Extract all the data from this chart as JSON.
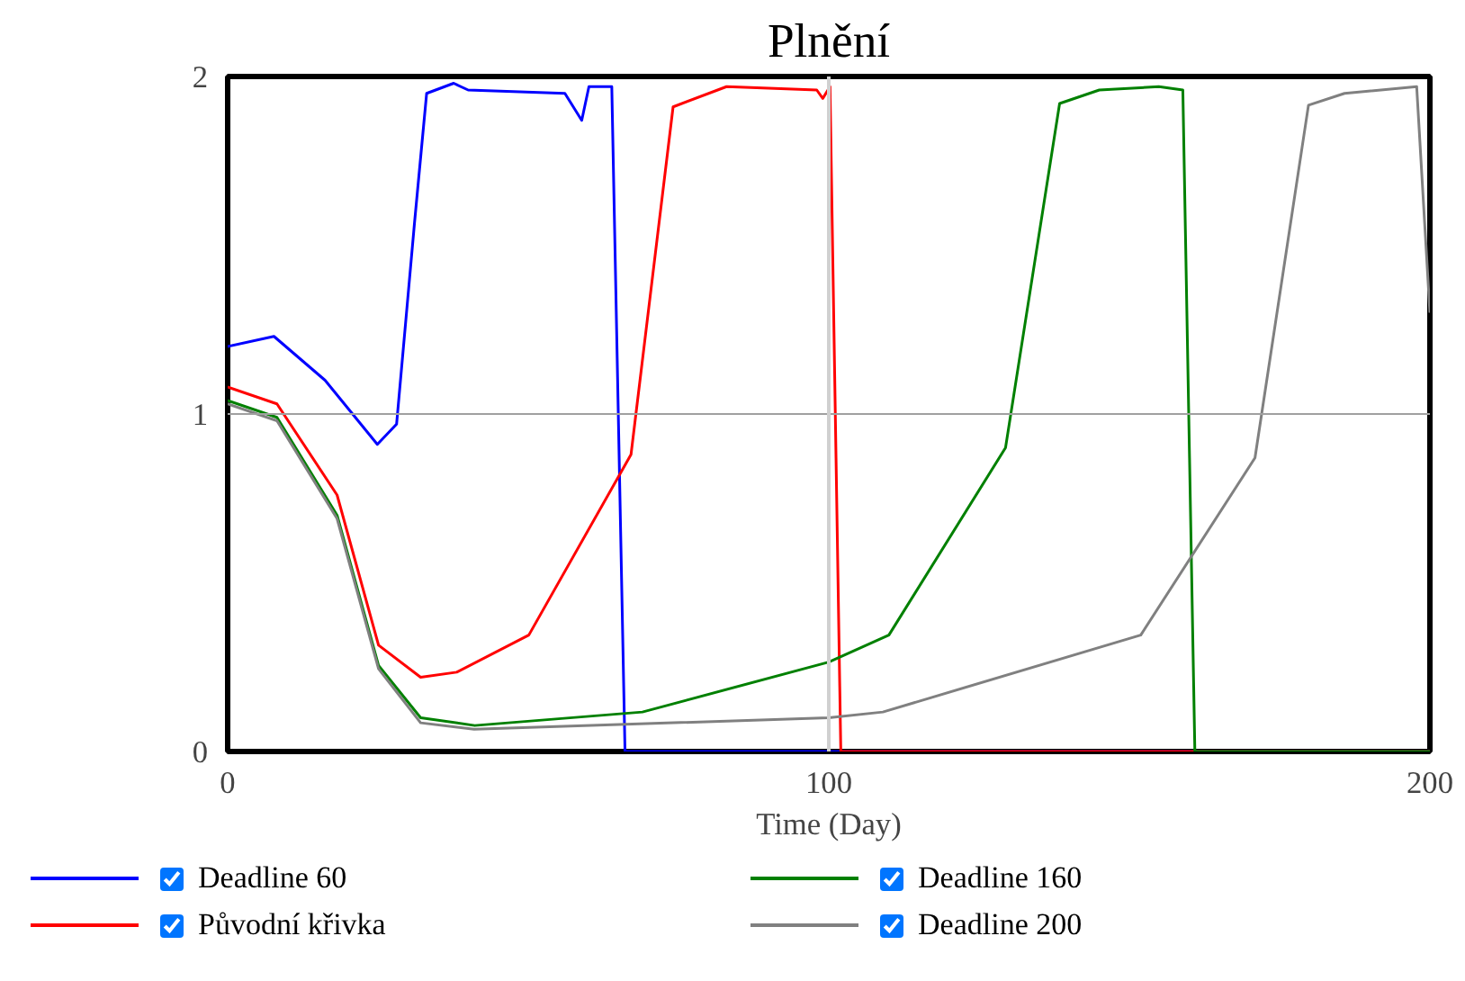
{
  "chart_data": {
    "type": "line",
    "title": "Plnění",
    "xlabel": "Time (Day)",
    "xlim": [
      0,
      200
    ],
    "xticks": [
      0,
      100,
      200
    ],
    "ylim": [
      0,
      2
    ],
    "yticks": [
      0,
      1,
      2
    ],
    "ref_lines": [
      {
        "axis": "y",
        "value": 1,
        "color": "#a0a0a0"
      },
      {
        "axis": "x",
        "value": 100,
        "color": "#d0d0d0"
      }
    ],
    "legend": "bottom",
    "line_style": "solid",
    "series": [
      {
        "name": "Deadline 60",
        "color": "#0000ff",
        "x": [
          0,
          7.7,
          16.2,
          24.9,
          28.1,
          31.1,
          33.1,
          37.6,
          40,
          56.1,
          58.9,
          60.1,
          63.9,
          66.1,
          200
        ],
        "values": [
          1.2,
          1.23,
          1.1,
          0.91,
          0.97,
          1.57,
          1.95,
          1.98,
          1.96,
          1.95,
          1.87,
          1.97,
          1.97,
          0,
          0
        ]
      },
      {
        "name": "Původní křivka",
        "color": "#ff0000",
        "x": [
          0,
          8.2,
          18.2,
          25.1,
          32.1,
          38.1,
          50.1,
          67.1,
          74.1,
          83,
          98,
          99,
          100.2,
          102,
          200
        ],
        "values": [
          1.08,
          1.03,
          0.76,
          0.315,
          0.22,
          0.235,
          0.345,
          0.88,
          1.91,
          1.97,
          1.96,
          1.935,
          1.97,
          0,
          0
        ]
      },
      {
        "name": "Deadline 160",
        "color": "#008000",
        "x": [
          0,
          8.2,
          18.2,
          25.1,
          32.1,
          41.1,
          69,
          100,
          110,
          129.4,
          138.4,
          145,
          154.9,
          158.9,
          160.9,
          200
        ],
        "values": [
          1.04,
          0.99,
          0.7,
          0.255,
          0.1,
          0.077,
          0.117,
          0.265,
          0.345,
          0.9,
          1.92,
          1.96,
          1.97,
          1.96,
          0,
          0
        ]
      },
      {
        "name": "Deadline 200",
        "color": "#808080",
        "x": [
          0,
          8.2,
          18.2,
          25.1,
          32.1,
          41,
          100,
          109,
          151.9,
          170.9,
          179.8,
          185.8,
          197.8,
          200
        ],
        "values": [
          1.03,
          0.98,
          0.69,
          0.245,
          0.085,
          0.066,
          0.1,
          0.117,
          0.345,
          0.87,
          1.915,
          1.95,
          1.97,
          1.3
        ]
      }
    ]
  }
}
